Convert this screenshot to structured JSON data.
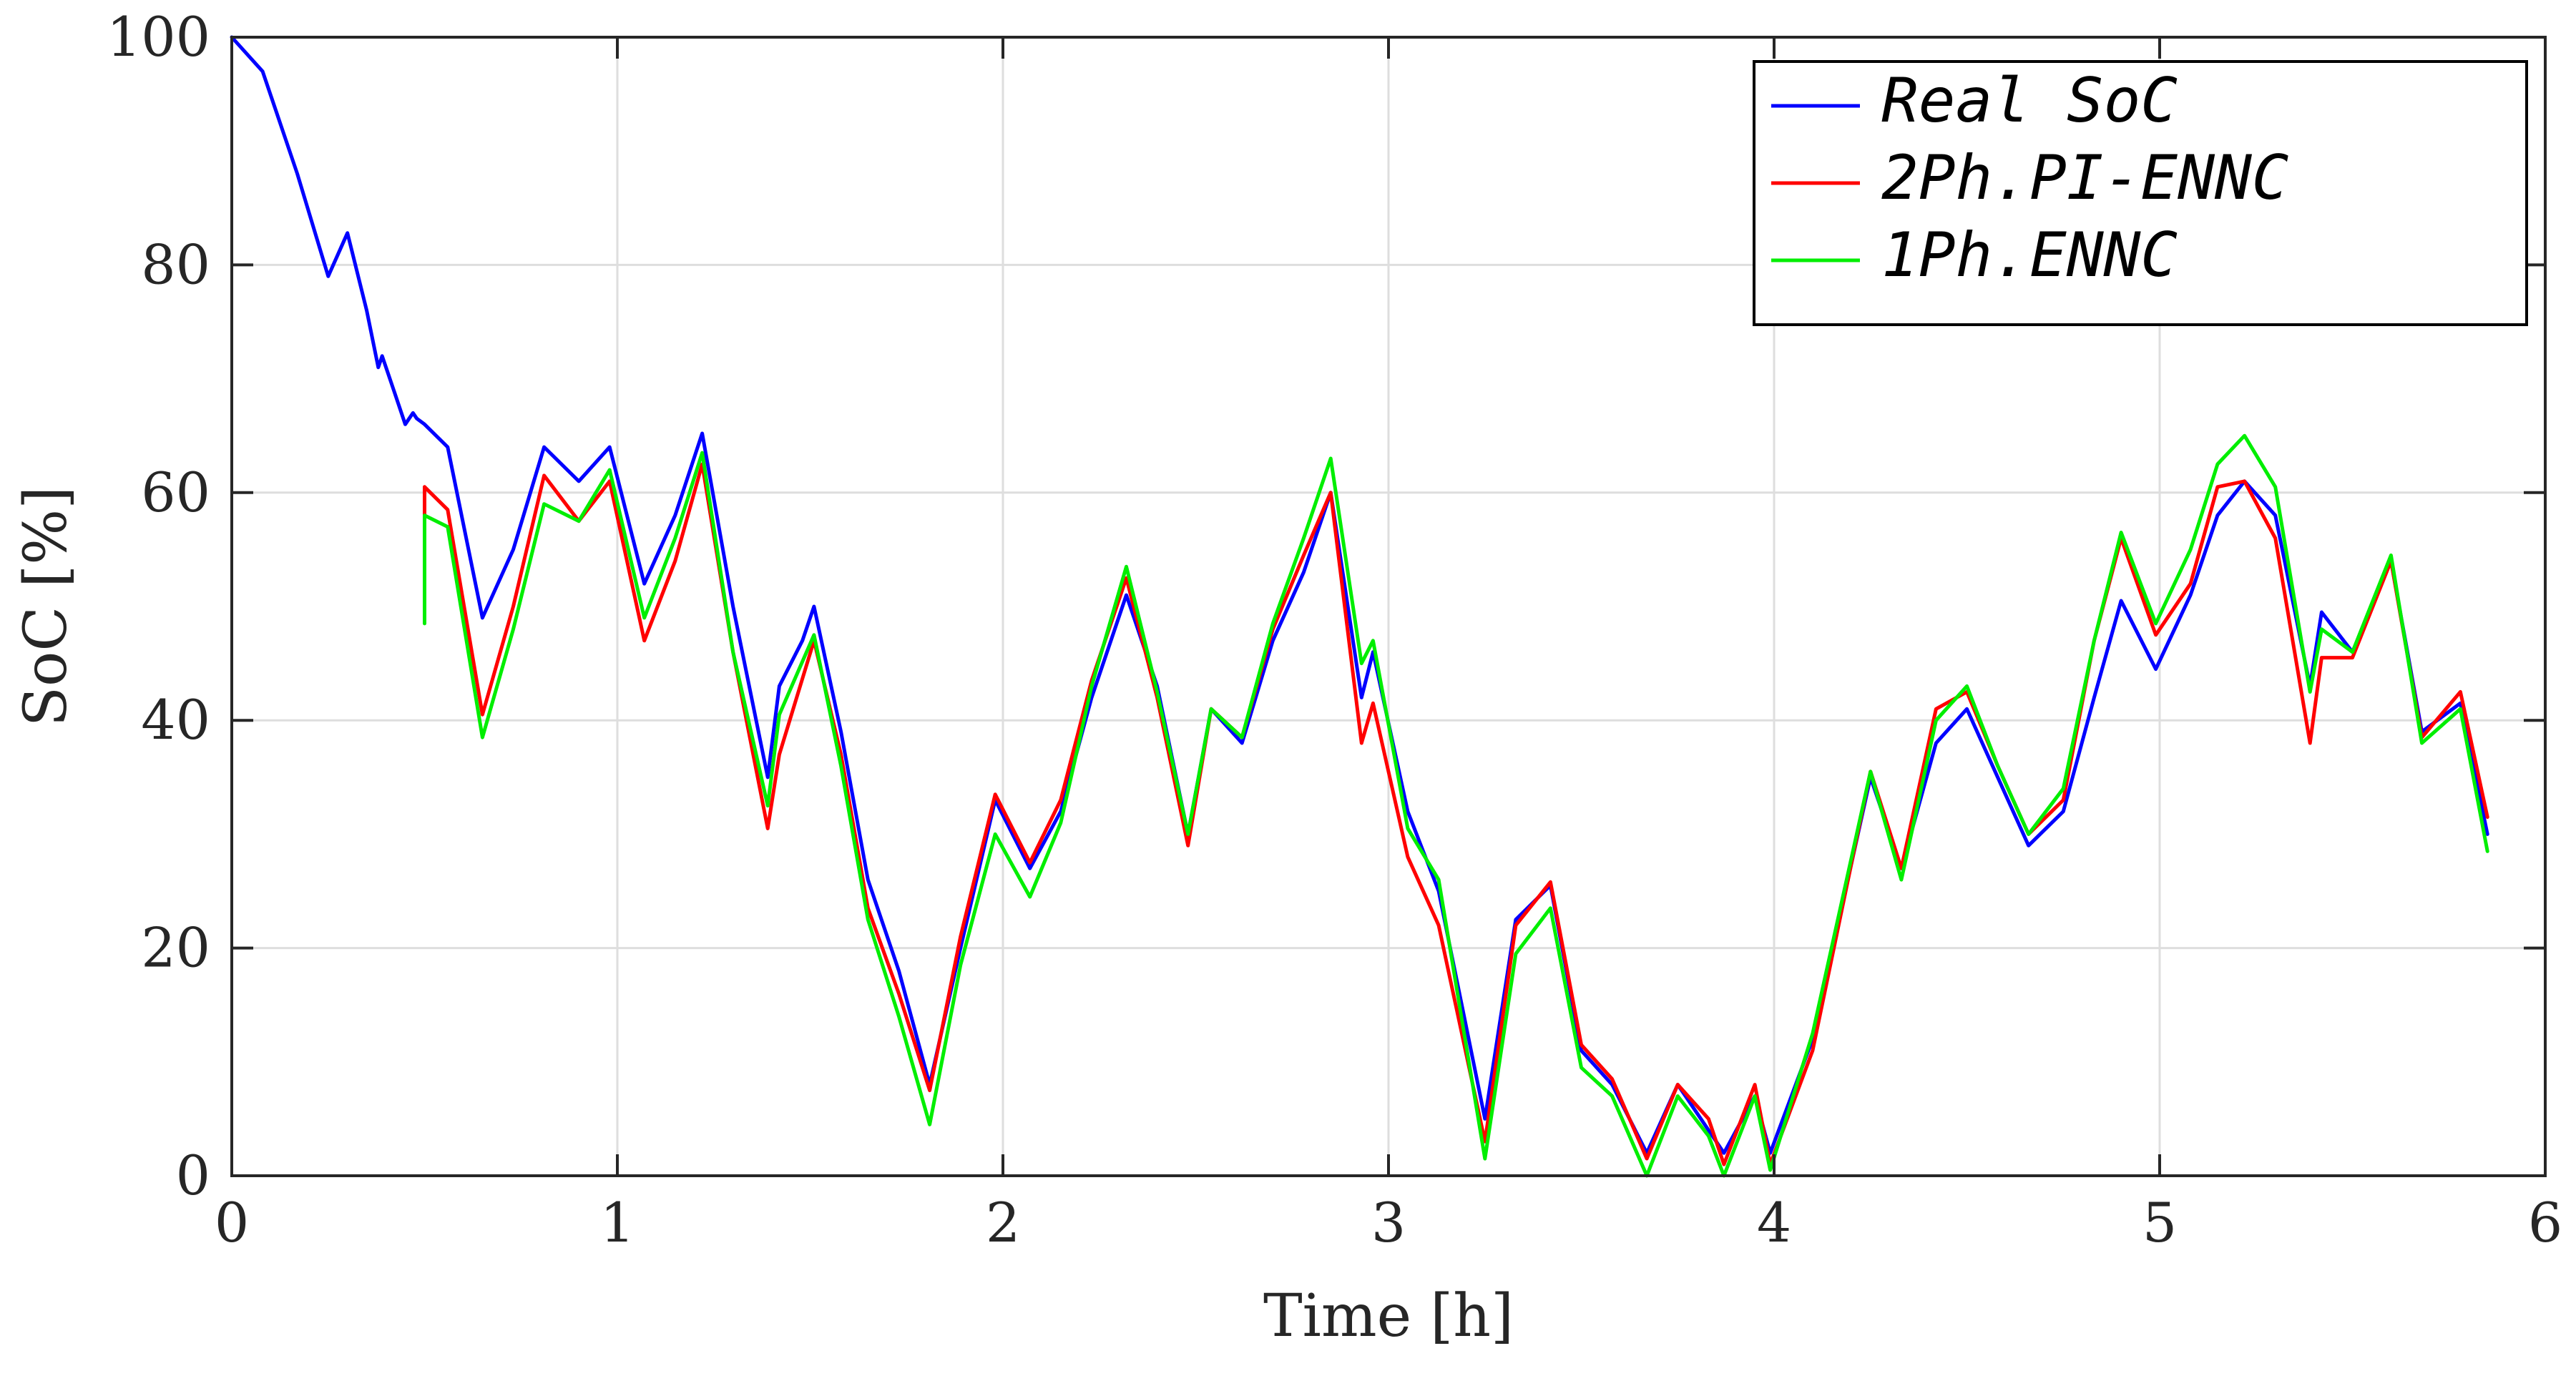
{
  "chart_data": {
    "type": "line",
    "xlabel": "Time [h]",
    "ylabel": "SoC [%]",
    "xlim": [
      0,
      6
    ],
    "ylim": [
      0,
      100
    ],
    "xticks": [
      0,
      1,
      2,
      3,
      4,
      5,
      6
    ],
    "yticks": [
      0,
      20,
      40,
      60,
      80,
      100
    ],
    "grid": true,
    "legend_position": "top-right",
    "series": [
      {
        "name": "Real SoC",
        "color": "#0000ff",
        "x": [
          0,
          0.08,
          0.17,
          0.25,
          0.3,
          0.35,
          0.38,
          0.39,
          0.4,
          0.42,
          0.45,
          0.47,
          0.48,
          0.5,
          0.56,
          0.65,
          0.73,
          0.81,
          0.9,
          0.98,
          1.07,
          1.15,
          1.22,
          1.3,
          1.39,
          1.42,
          1.48,
          1.51,
          1.58,
          1.65,
          1.73,
          1.81,
          1.89,
          1.98,
          2.07,
          2.15,
          2.23,
          2.32,
          2.4,
          2.48,
          2.54,
          2.62,
          2.7,
          2.78,
          2.85,
          2.93,
          2.96,
          3.05,
          3.13,
          3.25,
          3.33,
          3.42,
          3.5,
          3.58,
          3.67,
          3.75,
          3.83,
          3.87,
          3.95,
          3.99,
          4.1,
          4.25,
          4.33,
          4.42,
          4.5,
          4.58,
          4.66,
          4.75,
          4.83,
          4.9,
          4.99,
          5.08,
          5.15,
          5.22,
          5.3,
          5.39,
          5.42,
          5.5,
          5.6,
          5.68,
          5.78,
          5.85
        ],
        "values": [
          100,
          97,
          88,
          79,
          82.8,
          76,
          71,
          72,
          71,
          69,
          66,
          67,
          66.5,
          66,
          64,
          49,
          55,
          64,
          61,
          64,
          52,
          58,
          65.2,
          50,
          35,
          43,
          47,
          50,
          39,
          26,
          18,
          8,
          20,
          33,
          27,
          32,
          42,
          51,
          43,
          30,
          41,
          38,
          47,
          53,
          60,
          42,
          46,
          32,
          25,
          5,
          22.5,
          25.5,
          11,
          8,
          2,
          8,
          4,
          2,
          7,
          2,
          12,
          35,
          27,
          38,
          41,
          35,
          29,
          32,
          42,
          50.5,
          44.5,
          51,
          58,
          61,
          58,
          43,
          49.5,
          46,
          54,
          39,
          41.5,
          30
        ]
      },
      {
        "name": "2Ph.PI-ENNC",
        "color": "#ff0000",
        "x": [
          0.5,
          0.5,
          0.56,
          0.65,
          0.73,
          0.81,
          0.9,
          0.98,
          1.07,
          1.15,
          1.22,
          1.3,
          1.39,
          1.42,
          1.51,
          1.58,
          1.65,
          1.73,
          1.81,
          1.89,
          1.98,
          2.07,
          2.15,
          2.23,
          2.32,
          2.4,
          2.48,
          2.54,
          2.62,
          2.7,
          2.78,
          2.85,
          2.93,
          2.96,
          3.05,
          3.13,
          3.25,
          3.33,
          3.42,
          3.5,
          3.58,
          3.67,
          3.75,
          3.83,
          3.87,
          3.95,
          3.99,
          4.1,
          4.25,
          4.33,
          4.42,
          4.5,
          4.58,
          4.66,
          4.75,
          4.83,
          4.9,
          4.99,
          5.08,
          5.15,
          5.22,
          5.3,
          5.39,
          5.42,
          5.5,
          5.6,
          5.68,
          5.78,
          5.85
        ],
        "values": [
          51,
          60.5,
          58.5,
          40.5,
          50,
          61.5,
          57.5,
          61,
          47,
          54,
          62.5,
          46,
          30.5,
          37,
          47,
          37,
          23.5,
          16,
          7.5,
          21,
          33.5,
          27.5,
          33,
          43.5,
          52.5,
          42,
          29,
          41,
          38.5,
          48,
          54.5,
          60,
          38,
          41.5,
          28,
          22,
          3,
          22,
          25.8,
          11.5,
          8.5,
          1.5,
          8,
          5,
          1,
          8,
          1,
          11,
          35.5,
          27,
          41,
          42.5,
          36,
          30,
          33,
          47,
          56,
          47.5,
          52,
          60.5,
          61,
          56,
          38,
          45.5,
          45.5,
          54,
          38.5,
          42.5,
          31.5
        ]
      },
      {
        "name": "1Ph.ENNC",
        "color": "#00ee00",
        "x": [
          0.5,
          0.5,
          0.56,
          0.65,
          0.73,
          0.81,
          0.9,
          0.98,
          1.07,
          1.15,
          1.22,
          1.3,
          1.39,
          1.42,
          1.51,
          1.58,
          1.65,
          1.73,
          1.81,
          1.89,
          1.98,
          2.07,
          2.15,
          2.23,
          2.32,
          2.4,
          2.48,
          2.54,
          2.62,
          2.7,
          2.78,
          2.85,
          2.93,
          2.96,
          3.05,
          3.13,
          3.25,
          3.33,
          3.42,
          3.5,
          3.58,
          3.67,
          3.75,
          3.83,
          3.87,
          3.95,
          3.99,
          4.1,
          4.25,
          4.33,
          4.42,
          4.5,
          4.58,
          4.66,
          4.75,
          4.83,
          4.9,
          4.99,
          5.08,
          5.15,
          5.22,
          5.3,
          5.39,
          5.42,
          5.5,
          5.6,
          5.68,
          5.78,
          5.85
        ],
        "values": [
          48.5,
          58,
          57,
          38.5,
          48,
          59,
          57.5,
          62,
          49,
          56,
          63.5,
          46,
          32.5,
          40.5,
          47.5,
          36,
          22.5,
          14,
          4.5,
          18.5,
          30,
          24.5,
          31,
          43,
          53.5,
          42.5,
          30,
          41,
          38.5,
          48.5,
          56,
          63,
          45,
          47,
          30.5,
          26,
          1.5,
          19.5,
          23.5,
          9.5,
          7,
          0,
          7,
          3.5,
          0,
          7,
          0.5,
          12.5,
          35.5,
          26,
          40,
          43,
          36,
          30,
          34,
          47,
          56.5,
          48.5,
          55,
          62.5,
          65,
          60.5,
          42.5,
          48,
          46,
          54.5,
          38,
          41,
          28.5
        ]
      }
    ]
  }
}
